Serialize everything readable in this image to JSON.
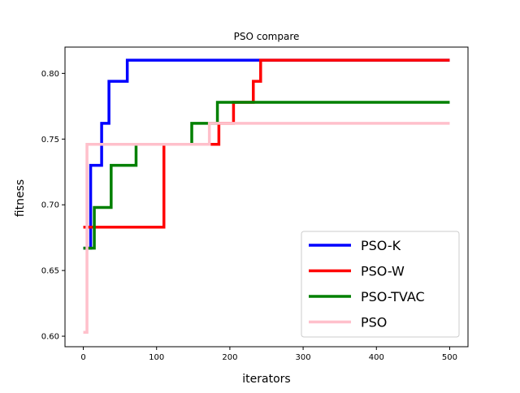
{
  "chart_data": {
    "type": "line",
    "title": "PSO compare",
    "xlabel": "iterators",
    "ylabel": "fitness",
    "xlim": [
      -25,
      525
    ],
    "ylim": [
      0.592,
      0.82
    ],
    "xticks": [
      0,
      100,
      200,
      300,
      400,
      500
    ],
    "yticks": [
      0.6,
      0.65,
      0.7,
      0.75,
      0.8
    ],
    "ytick_labels": [
      "0.60",
      "0.65",
      "0.70",
      "0.75",
      "0.80"
    ],
    "grid": false,
    "legend_position": "bottom-right",
    "series": [
      {
        "name": "PSO-K",
        "color": "#0000ff",
        "x": [
          0,
          10,
          10,
          25,
          25,
          35,
          35,
          60,
          60,
          500
        ],
        "y": [
          0.667,
          0.667,
          0.73,
          0.73,
          0.762,
          0.762,
          0.794,
          0.794,
          0.81,
          0.81
        ]
      },
      {
        "name": "PSO-W",
        "color": "#ff0000",
        "x": [
          0,
          110,
          110,
          185,
          185,
          205,
          205,
          232,
          232,
          242,
          242,
          500
        ],
        "y": [
          0.683,
          0.683,
          0.746,
          0.746,
          0.762,
          0.762,
          0.778,
          0.778,
          0.794,
          0.794,
          0.81,
          0.81
        ]
      },
      {
        "name": "PSO-TVAC",
        "color": "#008000",
        "x": [
          0,
          15,
          15,
          38,
          38,
          72,
          72,
          148,
          148,
          183,
          183,
          500
        ],
        "y": [
          0.667,
          0.667,
          0.698,
          0.698,
          0.73,
          0.73,
          0.746,
          0.746,
          0.762,
          0.762,
          0.778,
          0.778
        ]
      },
      {
        "name": "PSO",
        "color": "#ffc0cb",
        "x": [
          0,
          5,
          5,
          172,
          172,
          500
        ],
        "y": [
          0.603,
          0.603,
          0.746,
          0.746,
          0.762,
          0.762
        ]
      }
    ]
  }
}
